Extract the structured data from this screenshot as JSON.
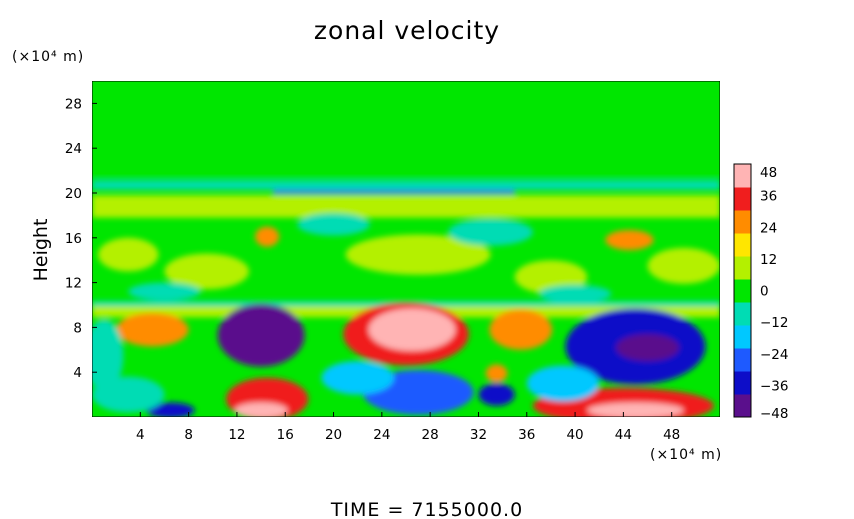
{
  "chart_data": {
    "type": "heatmap",
    "title": "zonal velocity",
    "ylabel": "Height",
    "xlabel": "",
    "x_unit": "(×10⁴ m)",
    "y_unit": "(×10⁴ m)",
    "xlim": [
      0,
      52
    ],
    "ylim": [
      0,
      30
    ],
    "xticks": [
      4,
      8,
      12,
      16,
      20,
      24,
      28,
      32,
      36,
      40,
      44,
      48
    ],
    "yticks": [
      4,
      8,
      12,
      16,
      20,
      24,
      28
    ],
    "colorbar": {
      "range": [
        -48,
        48
      ],
      "ticks": [
        48,
        36,
        24,
        12,
        0,
        -12,
        -24,
        -36,
        -48
      ],
      "colors": [
        "#5a0f8c",
        "#0d0dc8",
        "#1e5aff",
        "#00c8ff",
        "#00dcb4",
        "#00e600",
        "#b4f000",
        "#ffe600",
        "#ff8c00",
        "#f01e1e",
        "#ffb4b4"
      ]
    },
    "background_value": 2,
    "features": [
      {
        "kind": "band",
        "y": 10.1,
        "thickness": 0.5,
        "value": -6,
        "x0": 0,
        "x1": 52
      },
      {
        "kind": "band",
        "y": 9.4,
        "thickness": 1.0,
        "value": 6,
        "x0": 0,
        "x1": 52
      },
      {
        "kind": "band",
        "y": 18.8,
        "thickness": 2.0,
        "value": 12,
        "x0": 0,
        "x1": 52
      },
      {
        "kind": "band",
        "y": 20.7,
        "thickness": 0.8,
        "value": -14,
        "x0": 0,
        "x1": 52
      },
      {
        "kind": "band",
        "y": 20.1,
        "thickness": 0.35,
        "value": -30,
        "x0": 15,
        "x1": 35
      },
      {
        "kind": "band",
        "y": 21.6,
        "thickness": 0.6,
        "value": -2,
        "x0": 0,
        "x1": 52
      },
      {
        "kind": "blob",
        "x": 14,
        "y": 7.3,
        "rx": 3.6,
        "ry": 2.8,
        "value": -46
      },
      {
        "kind": "blob",
        "x": 45,
        "y": 6.3,
        "rx": 5.8,
        "ry": 3.4,
        "value": -38
      },
      {
        "kind": "blob",
        "x": 46,
        "y": 6.2,
        "rx": 2.6,
        "ry": 1.2,
        "value": -48
      },
      {
        "kind": "blob",
        "x": 26,
        "y": 7.4,
        "rx": 5.2,
        "ry": 2.8,
        "value": 42
      },
      {
        "kind": "blob",
        "x": 26.5,
        "y": 7.8,
        "rx": 3.6,
        "ry": 1.9,
        "value": 50
      },
      {
        "kind": "blob",
        "x": 35.5,
        "y": 7.8,
        "rx": 2.6,
        "ry": 1.8,
        "value": 28
      },
      {
        "kind": "blob",
        "x": 5,
        "y": 7.8,
        "rx": 3.0,
        "ry": 1.5,
        "value": 30
      },
      {
        "kind": "blob",
        "x": 1,
        "y": 5.5,
        "rx": 1.6,
        "ry": 3.2,
        "value": -14
      },
      {
        "kind": "blob",
        "x": 14.5,
        "y": 1.6,
        "rx": 3.4,
        "ry": 1.9,
        "value": 36
      },
      {
        "kind": "blob",
        "x": 14,
        "y": 0.6,
        "rx": 2.2,
        "ry": 0.7,
        "value": 48
      },
      {
        "kind": "blob",
        "x": 27,
        "y": 2.2,
        "rx": 4.6,
        "ry": 2.0,
        "value": -32
      },
      {
        "kind": "blob",
        "x": 33.5,
        "y": 2.0,
        "rx": 1.5,
        "ry": 1.0,
        "value": -38
      },
      {
        "kind": "blob",
        "x": 44,
        "y": 1.0,
        "rx": 7.5,
        "ry": 1.6,
        "value": 34
      },
      {
        "kind": "blob",
        "x": 45,
        "y": 0.6,
        "rx": 4.0,
        "ry": 0.7,
        "value": 50
      },
      {
        "kind": "blob",
        "x": 6.5,
        "y": 0.6,
        "rx": 2.0,
        "ry": 0.7,
        "value": -40
      },
      {
        "kind": "blob",
        "x": 33.5,
        "y": 3.9,
        "rx": 0.9,
        "ry": 0.8,
        "value": 32
      },
      {
        "kind": "blob",
        "x": 22,
        "y": 3.5,
        "rx": 3.0,
        "ry": 1.5,
        "value": -18
      },
      {
        "kind": "blob",
        "x": 39,
        "y": 3.0,
        "rx": 3.0,
        "ry": 1.6,
        "value": -16
      },
      {
        "kind": "blob",
        "x": 3,
        "y": 2.0,
        "rx": 3.0,
        "ry": 1.6,
        "value": -14
      },
      {
        "kind": "blob",
        "x": 14.5,
        "y": 16.1,
        "rx": 1.0,
        "ry": 0.9,
        "value": 30
      },
      {
        "kind": "blob",
        "x": 44.5,
        "y": 15.8,
        "rx": 2.0,
        "ry": 0.9,
        "value": 28
      },
      {
        "kind": "blob",
        "x": 9.5,
        "y": 13.0,
        "rx": 3.5,
        "ry": 1.6,
        "value": 14
      },
      {
        "kind": "blob",
        "x": 27,
        "y": 14.5,
        "rx": 6.0,
        "ry": 1.8,
        "value": 12
      },
      {
        "kind": "blob",
        "x": 38,
        "y": 12.5,
        "rx": 3.0,
        "ry": 1.5,
        "value": 14
      },
      {
        "kind": "blob",
        "x": 49,
        "y": 13.5,
        "rx": 3.0,
        "ry": 1.6,
        "value": 14
      },
      {
        "kind": "blob",
        "x": 3,
        "y": 14.5,
        "rx": 2.5,
        "ry": 1.5,
        "value": 13
      },
      {
        "kind": "blob",
        "x": 20,
        "y": 17.2,
        "rx": 3.0,
        "ry": 1.0,
        "value": -6
      },
      {
        "kind": "blob",
        "x": 33,
        "y": 16.5,
        "rx": 3.5,
        "ry": 1.2,
        "value": -6
      },
      {
        "kind": "blob",
        "x": 6,
        "y": 11.2,
        "rx": 3.0,
        "ry": 0.8,
        "value": -5
      },
      {
        "kind": "blob",
        "x": 40,
        "y": 11.0,
        "rx": 3.0,
        "ry": 0.8,
        "value": -6
      }
    ]
  },
  "footer": {
    "time_label": "TIME = 7155000.0"
  }
}
